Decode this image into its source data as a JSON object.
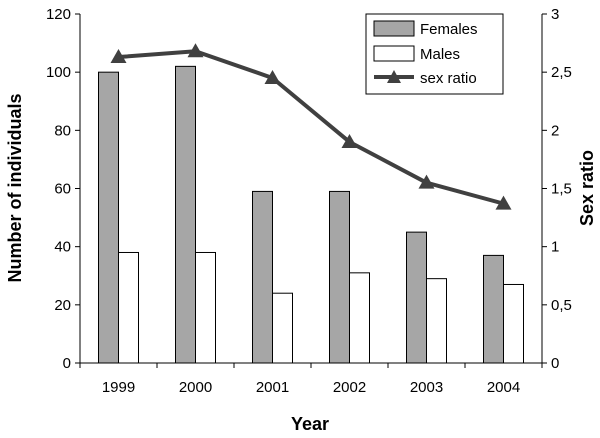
{
  "chart_data": {
    "type": "bar",
    "categories": [
      "1999",
      "2000",
      "2001",
      "2002",
      "2003",
      "2004"
    ],
    "series": [
      {
        "name": "Females",
        "type": "bar",
        "axis": "left",
        "color": "#a6a6a6",
        "values": [
          100,
          102,
          59,
          59,
          45,
          37
        ]
      },
      {
        "name": "Males",
        "type": "bar",
        "axis": "left",
        "color": "#ffffff",
        "values": [
          38,
          38,
          24,
          31,
          29,
          27
        ]
      },
      {
        "name": "sex ratio",
        "type": "line",
        "axis": "right",
        "color": "#404040",
        "marker": "triangle",
        "values": [
          2.63,
          2.68,
          2.45,
          1.9,
          1.55,
          1.37
        ]
      }
    ],
    "xlabel": "Year",
    "ylabel": "Number of individuals",
    "ylabel_right": "Sex ratio",
    "ylim": [
      0,
      120
    ],
    "ylim_right": [
      0,
      3
    ],
    "yticks": [
      "0",
      "20",
      "40",
      "60",
      "80",
      "100",
      "120"
    ],
    "yticks_right": [
      "0",
      "0,5",
      "1",
      "1,5",
      "2",
      "2,5",
      "3"
    ],
    "legend_position": "top-right",
    "grid": false
  }
}
